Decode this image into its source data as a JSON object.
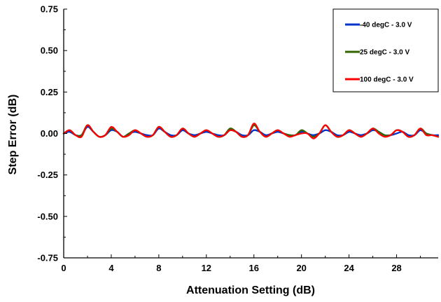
{
  "chart_data": {
    "type": "line",
    "xlabel": "Attenuation Setting (dB)",
    "ylabel": "Step Error (dB)",
    "xlim": [
      0,
      31.5
    ],
    "ylim": [
      -0.75,
      0.75
    ],
    "x_ticks": [
      0,
      4,
      8,
      12,
      16,
      20,
      24,
      28
    ],
    "x_tick_labels": [
      "0",
      "4",
      "8",
      "12",
      "16",
      "20",
      "24",
      "28"
    ],
    "y_ticks": [
      0.75,
      0.5,
      0.25,
      0.0,
      -0.25,
      -0.5,
      -0.75
    ],
    "y_tick_labels": [
      "0.75",
      "0.50",
      "0.25",
      "0.00",
      "-0.25",
      "-0.50",
      "-0.75"
    ],
    "grid": false,
    "legend_position": "top-right",
    "series": [
      {
        "name": "-40 degC - 3.0 V",
        "color": "#0033cc",
        "x": [
          0,
          0.5,
          1,
          1.5,
          2,
          2.5,
          3,
          3.5,
          4,
          4.5,
          5,
          5.5,
          6,
          6.5,
          7,
          7.5,
          8,
          8.5,
          9,
          9.5,
          10,
          10.5,
          11,
          11.5,
          12,
          12.5,
          13,
          13.5,
          14,
          14.5,
          15,
          15.5,
          16,
          16.5,
          17,
          17.5,
          18,
          18.5,
          19,
          19.5,
          20,
          20.5,
          21,
          21.5,
          22,
          22.5,
          23,
          23.5,
          24,
          24.5,
          25,
          25.5,
          26,
          26.5,
          27,
          27.5,
          28,
          28.5,
          29,
          29.5,
          30,
          30.5,
          31,
          31.5
        ],
        "y": [
          0.0,
          0.01,
          -0.01,
          -0.01,
          0.04,
          0.01,
          -0.02,
          -0.01,
          0.02,
          0.01,
          -0.02,
          0.0,
          0.01,
          0.0,
          -0.01,
          -0.01,
          0.03,
          0.01,
          -0.01,
          -0.01,
          0.02,
          0.0,
          -0.01,
          0.0,
          0.01,
          0.0,
          -0.01,
          -0.01,
          0.02,
          0.01,
          -0.01,
          -0.01,
          0.02,
          0.01,
          -0.01,
          0.0,
          0.01,
          0.0,
          -0.01,
          -0.01,
          0.01,
          0.0,
          -0.01,
          0.0,
          0.02,
          0.01,
          -0.01,
          -0.01,
          0.01,
          0.0,
          -0.01,
          0.0,
          0.02,
          0.01,
          -0.01,
          -0.01,
          0.0,
          0.01,
          -0.01,
          -0.01,
          0.02,
          0.0,
          -0.01,
          -0.01
        ]
      },
      {
        "name": "25 degC - 3.0 V",
        "color": "#336600",
        "x": [
          0,
          0.5,
          1,
          1.5,
          2,
          2.5,
          3,
          3.5,
          4,
          4.5,
          5,
          5.5,
          6,
          6.5,
          7,
          7.5,
          8,
          8.5,
          9,
          9.5,
          10,
          10.5,
          11,
          11.5,
          12,
          12.5,
          13,
          13.5,
          14,
          14.5,
          15,
          15.5,
          16,
          16.5,
          17,
          17.5,
          18,
          18.5,
          19,
          19.5,
          20,
          20.5,
          21,
          21.5,
          22,
          22.5,
          23,
          23.5,
          24,
          24.5,
          25,
          25.5,
          26,
          26.5,
          27,
          27.5,
          28,
          28.5,
          29,
          29.5,
          30,
          30.5,
          31,
          31.5
        ],
        "y": [
          0.0,
          0.02,
          -0.01,
          -0.01,
          0.05,
          0.01,
          -0.02,
          -0.01,
          0.03,
          0.01,
          -0.02,
          0.0,
          0.02,
          0.0,
          -0.02,
          -0.01,
          0.04,
          0.01,
          -0.02,
          -0.01,
          0.03,
          0.0,
          -0.02,
          0.0,
          0.02,
          0.0,
          -0.02,
          -0.01,
          0.03,
          0.01,
          -0.02,
          -0.01,
          0.05,
          0.01,
          -0.02,
          0.0,
          0.02,
          0.0,
          -0.01,
          -0.01,
          0.02,
          0.0,
          -0.02,
          0.0,
          0.05,
          0.01,
          -0.02,
          -0.01,
          0.02,
          0.0,
          -0.02,
          0.0,
          0.03,
          0.01,
          -0.01,
          -0.01,
          0.02,
          0.01,
          -0.02,
          -0.01,
          0.03,
          0.0,
          -0.01,
          -0.02
        ]
      },
      {
        "name": "100 degC - 3.0 V",
        "color": "#ff0000",
        "x": [
          0,
          0.5,
          1,
          1.5,
          2,
          2.5,
          3,
          3.5,
          4,
          4.5,
          5,
          5.5,
          6,
          6.5,
          7,
          7.5,
          8,
          8.5,
          9,
          9.5,
          10,
          10.5,
          11,
          11.5,
          12,
          12.5,
          13,
          13.5,
          14,
          14.5,
          15,
          15.5,
          16,
          16.5,
          17,
          17.5,
          18,
          18.5,
          19,
          19.5,
          20,
          20.5,
          21,
          21.5,
          22,
          22.5,
          23,
          23.5,
          24,
          24.5,
          25,
          25.5,
          26,
          26.5,
          27,
          27.5,
          28,
          28.5,
          29,
          29.5,
          30,
          30.5,
          31,
          31.5
        ],
        "y": [
          0.0,
          0.02,
          -0.01,
          -0.02,
          0.05,
          0.01,
          -0.02,
          -0.01,
          0.04,
          0.01,
          -0.02,
          -0.01,
          0.02,
          0.0,
          -0.02,
          -0.01,
          0.04,
          0.01,
          -0.02,
          -0.01,
          0.03,
          0.0,
          -0.02,
          0.0,
          0.02,
          0.0,
          -0.02,
          -0.01,
          0.02,
          0.01,
          -0.02,
          -0.01,
          0.06,
          0.01,
          -0.02,
          0.0,
          0.02,
          0.0,
          -0.02,
          -0.01,
          0.0,
          0.0,
          -0.03,
          0.0,
          0.05,
          0.01,
          -0.02,
          -0.01,
          0.02,
          0.0,
          -0.02,
          0.0,
          0.03,
          0.0,
          -0.02,
          -0.01,
          0.02,
          0.01,
          -0.02,
          -0.01,
          0.03,
          -0.01,
          -0.01,
          -0.02
        ]
      }
    ]
  }
}
